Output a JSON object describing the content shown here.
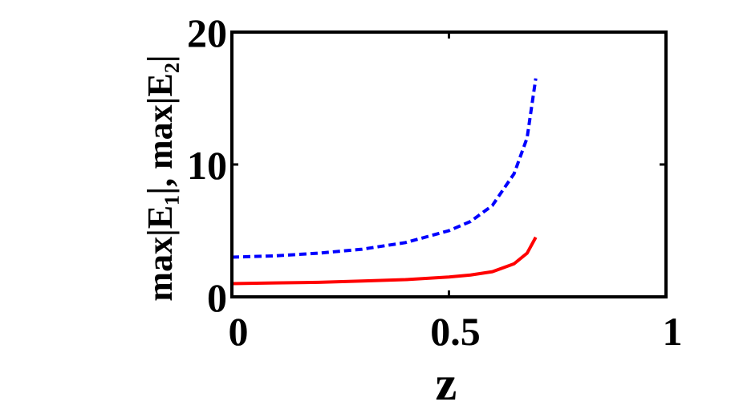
{
  "chart_data": {
    "type": "line",
    "x_label": "z",
    "y_label": "max|E₁|, max|E₂|",
    "x": [
      0,
      0.1,
      0.2,
      0.3,
      0.4,
      0.5,
      0.55,
      0.6,
      0.65,
      0.68,
      0.7
    ],
    "series": [
      {
        "color": "#ff0000",
        "dash": false,
        "values": [
          1.0,
          1.05,
          1.1,
          1.2,
          1.3,
          1.5,
          1.65,
          1.9,
          2.5,
          3.3,
          4.5
        ]
      },
      {
        "color": "#0000ff",
        "dash": true,
        "values": [
          3.0,
          3.1,
          3.3,
          3.6,
          4.1,
          5.0,
          5.7,
          6.9,
          9.3,
          12.0,
          16.5
        ]
      }
    ],
    "xlim": [
      0,
      1
    ],
    "xticks": [
      0,
      0.5,
      1
    ],
    "ylim": [
      0,
      20
    ],
    "yticks": [
      0,
      10,
      20
    ]
  }
}
